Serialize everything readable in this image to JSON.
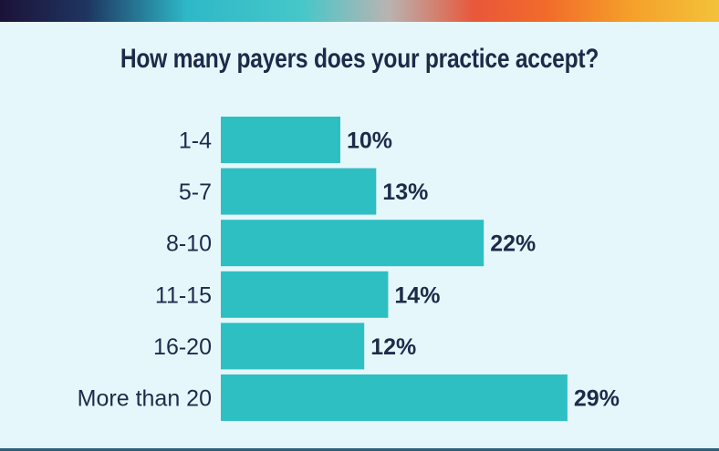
{
  "colors": {
    "background": "#e6f7fb",
    "bar": "#2ebfc3",
    "text": "#1d2b4a"
  },
  "chart_data": {
    "type": "bar",
    "orientation": "horizontal",
    "title": "How many payers does your practice accept?",
    "categories": [
      "1-4",
      "5-7",
      "8-10",
      "11-15",
      "16-20",
      "More than 20"
    ],
    "values": [
      10,
      13,
      22,
      14,
      12,
      29
    ],
    "value_labels": [
      "10%",
      "13%",
      "22%",
      "14%",
      "12%",
      "29%"
    ],
    "unit": "%",
    "grid": false,
    "legend": "none"
  }
}
